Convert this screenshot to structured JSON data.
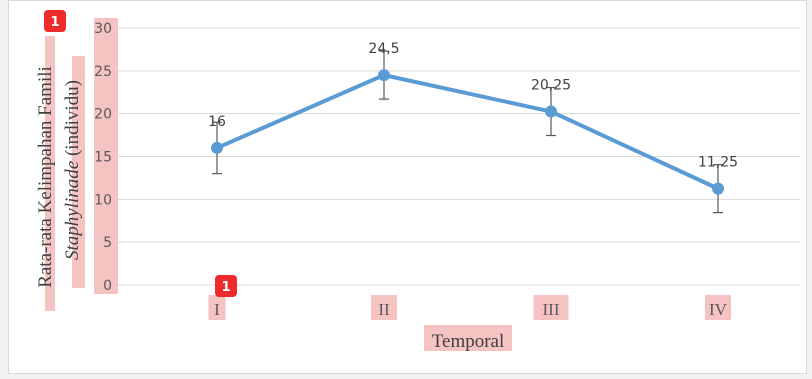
{
  "chart_data": {
    "type": "line",
    "categories": [
      "I",
      "II",
      "III",
      "IV"
    ],
    "values": [
      16,
      24.5,
      20.25,
      11.25
    ],
    "error_bars": [
      3,
      2.8,
      2.8,
      2.8
    ],
    "data_labels": [
      "16",
      "24,5",
      "20,25",
      "11,25"
    ],
    "xlabel": "Temporal",
    "ylabel_line1": "Rata-rata Kelimpahan Famili",
    "ylabel_line2_italic": "Staphylinade",
    "ylabel_line2_rest": " (individu)",
    "ylim": [
      0,
      30
    ],
    "yticks": [
      "0",
      "5",
      "10",
      "15",
      "20",
      "25",
      "30"
    ],
    "grid": true,
    "line_color": "#5b9bd5"
  },
  "badges": [
    "1",
    "1"
  ]
}
